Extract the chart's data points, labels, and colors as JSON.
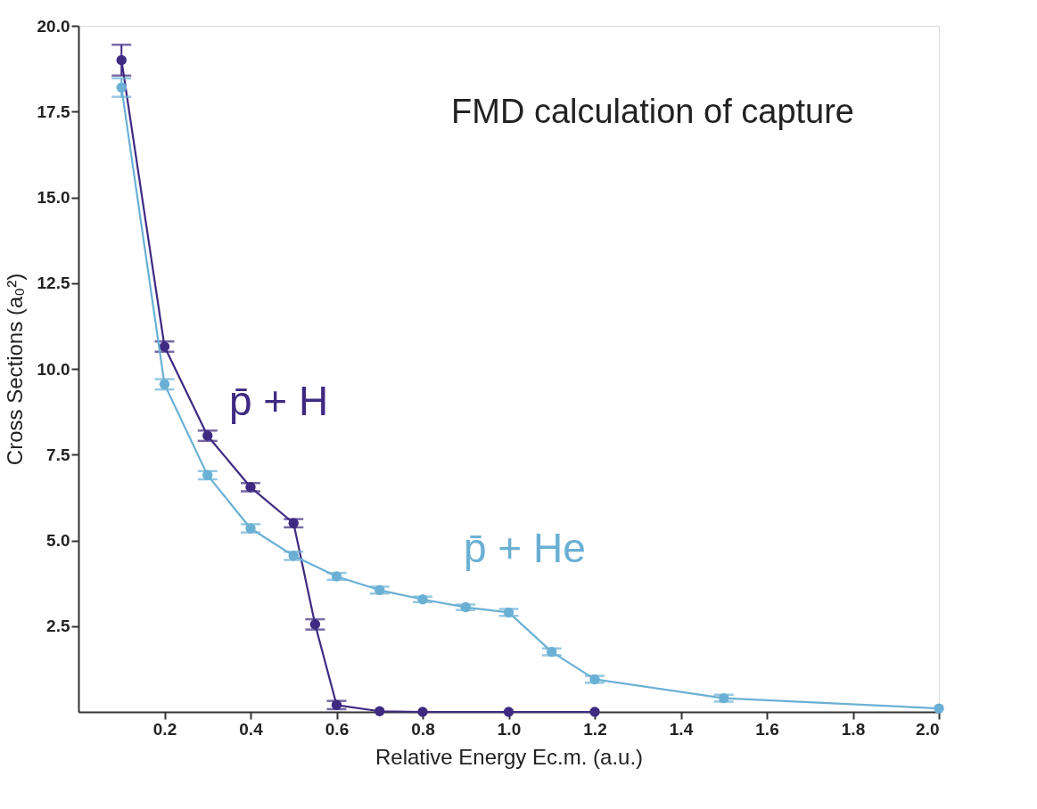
{
  "chart_data": {
    "type": "line",
    "xlabel": "Relative Energy Ec.m. (a.u.)",
    "ylabel": "Cross Sections (a₀²)",
    "annotations": [
      "FMD calculation of capture"
    ],
    "xlim": [
      0,
      2.0
    ],
    "xticks": [
      0.2,
      0.4,
      0.6,
      0.8,
      {
        "value": 1,
        "label": "1.0"
      },
      1.2,
      1.4,
      1.6,
      1.8,
      {
        "value": 2,
        "label": "2.0"
      }
    ],
    "ylim": [
      0,
      20
    ],
    "yticks": [
      2.5,
      {
        "value": 5,
        "label": "5.0"
      },
      7.5,
      {
        "value": 10,
        "label": "10.0"
      },
      12.5,
      {
        "value": 15,
        "label": "15.0"
      },
      17.5,
      {
        "value": 20,
        "label": "20.0"
      }
    ],
    "grid": false,
    "legend": false,
    "marker": "circle",
    "line_style": "solid",
    "series": [
      {
        "name": "p̄ + H",
        "color": "#3f2a82",
        "x": [
          0.1,
          0.2,
          0.3,
          0.4,
          0.5,
          0.55,
          0.6,
          0.7,
          0.8,
          1.0,
          1.2
        ],
        "values": [
          19.0,
          10.65,
          8.05,
          6.55,
          5.5,
          2.55,
          0.2,
          0.02,
          0,
          0,
          0
        ],
        "errors": [
          0.45,
          0.15,
          0.15,
          0.12,
          0.12,
          0.15,
          0.12,
          null,
          null,
          null,
          null
        ]
      },
      {
        "name": "p̄ + He",
        "color": "#6ab0d4",
        "x": [
          0.1,
          0.2,
          0.3,
          0.4,
          0.5,
          0.6,
          0.7,
          0.8,
          0.9,
          1.0,
          1.1,
          1.2,
          1.5,
          2.0
        ],
        "values": [
          18.2,
          9.55,
          6.9,
          5.35,
          4.55,
          3.95,
          3.55,
          3.28,
          3.05,
          2.9,
          1.75,
          0.95,
          0.4,
          0.1
        ],
        "errors": [
          0.27,
          0.15,
          0.12,
          0.12,
          0.12,
          0.1,
          0.1,
          0.08,
          0.08,
          0.1,
          0.1,
          0.1,
          0.1,
          null
        ]
      }
    ]
  }
}
